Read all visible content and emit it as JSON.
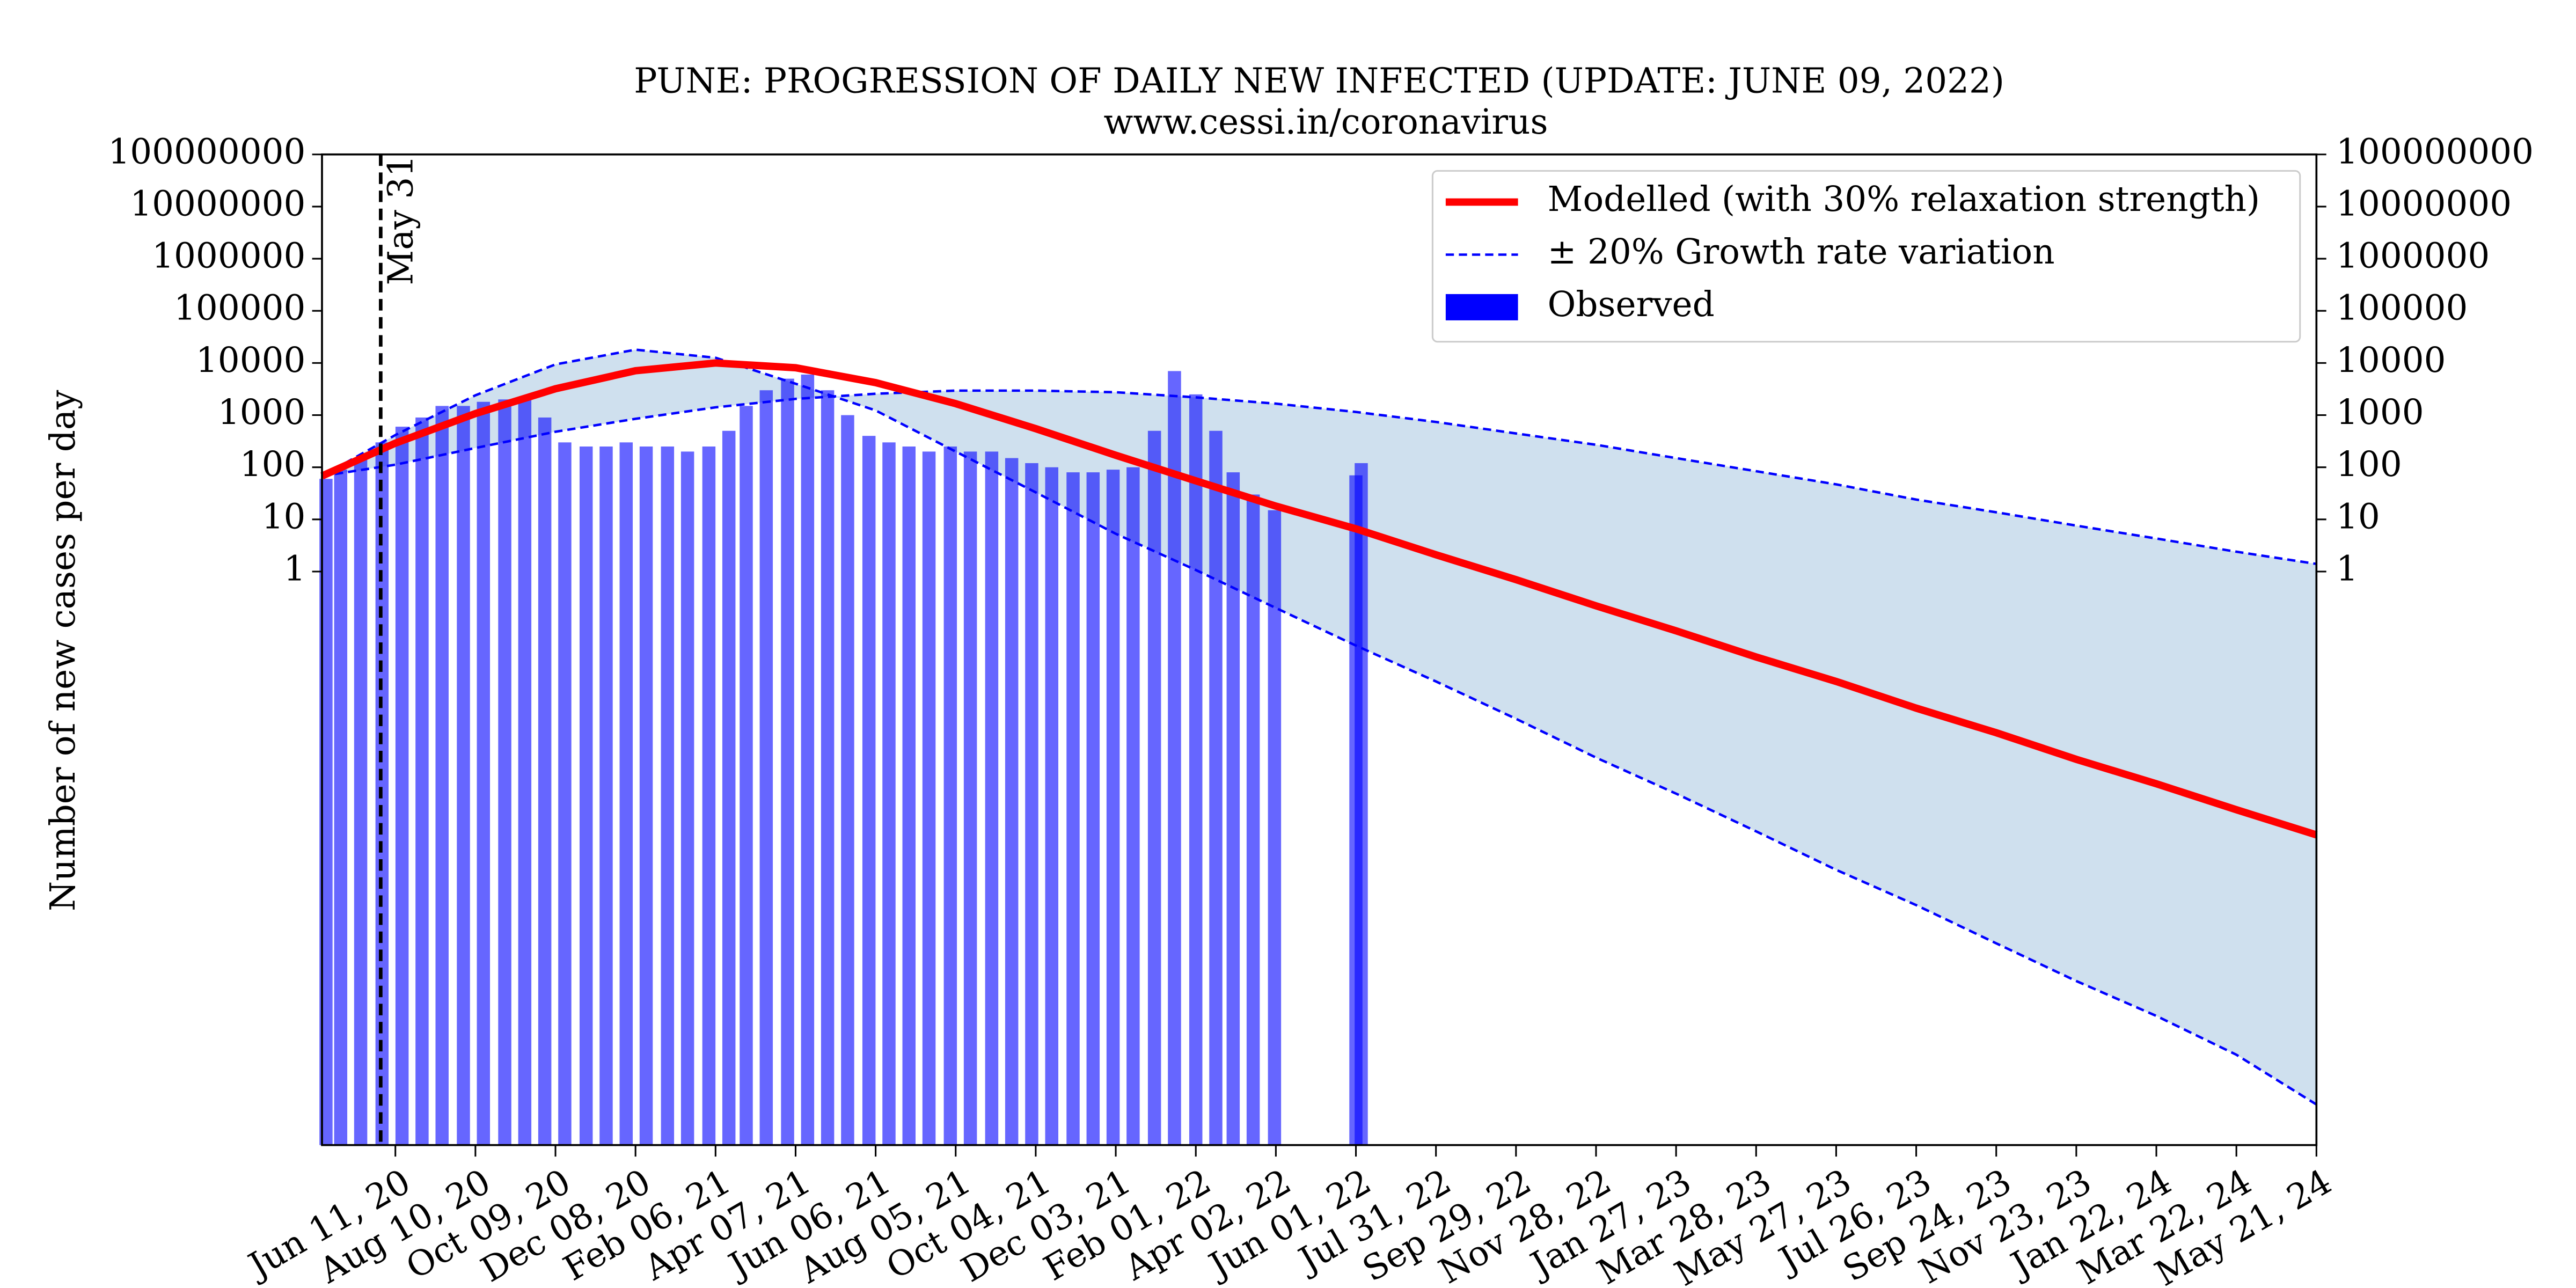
{
  "chart_data": {
    "type": "line",
    "title": "PUNE: PROGRESSION OF DAILY NEW INFECTED (UPDATE: JUNE 09, 2022)",
    "subtitle": "www.cessi.in/coronavirus",
    "ylabel": "Number of new cases per day",
    "yscale": "log",
    "ylim": [
      1e-11,
      100000000
    ],
    "yticks": [
      1,
      10,
      100,
      1000,
      10000,
      100000,
      1000000,
      10000000,
      100000000
    ],
    "y2lim": [
      1e-11,
      100000000
    ],
    "y2ticks": [
      1,
      10,
      100,
      1000,
      10000,
      100000,
      1000000,
      10000000,
      100000000
    ],
    "xlim": [
      "2020-04-17",
      "2024-05-21"
    ],
    "xticks": [
      {
        "value": "2020-06-11",
        "label": "Jun 11, 20"
      },
      {
        "value": "2020-08-10",
        "label": "Aug 10, 20"
      },
      {
        "value": "2020-10-09",
        "label": "Oct 09, 20"
      },
      {
        "value": "2020-12-08",
        "label": "Dec 08, 20"
      },
      {
        "value": "2021-02-06",
        "label": "Feb 06, 21"
      },
      {
        "value": "2021-04-07",
        "label": "Apr 07, 21"
      },
      {
        "value": "2021-06-06",
        "label": "Jun 06, 21"
      },
      {
        "value": "2021-08-05",
        "label": "Aug 05, 21"
      },
      {
        "value": "2021-10-04",
        "label": "Oct 04, 21"
      },
      {
        "value": "2021-12-03",
        "label": "Dec 03, 21"
      },
      {
        "value": "2022-02-01",
        "label": "Feb 01, 22"
      },
      {
        "value": "2022-04-02",
        "label": "Apr 02, 22"
      },
      {
        "value": "2022-06-01",
        "label": "Jun 01, 22"
      },
      {
        "value": "2022-07-31",
        "label": "Jul 31, 22"
      },
      {
        "value": "2022-09-29",
        "label": "Sep 29, 22"
      },
      {
        "value": "2022-11-28",
        "label": "Nov 28, 22"
      },
      {
        "value": "2023-01-27",
        "label": "Jan 27, 23"
      },
      {
        "value": "2023-03-28",
        "label": "Mar 28, 23"
      },
      {
        "value": "2023-05-27",
        "label": "May 27, 23"
      },
      {
        "value": "2023-07-26",
        "label": "Jul 26, 23"
      },
      {
        "value": "2023-09-24",
        "label": "Sep 24, 23"
      },
      {
        "value": "2023-11-23",
        "label": "Nov 23, 23"
      },
      {
        "value": "2024-01-22",
        "label": "Jan 22, 24"
      },
      {
        "value": "2024-03-22",
        "label": "Mar 22, 24"
      },
      {
        "value": "2024-05-21",
        "label": "May 21, 24"
      }
    ],
    "x": [
      "2020-04-17",
      "2020-06-11",
      "2020-08-10",
      "2020-10-09",
      "2020-12-08",
      "2021-02-06",
      "2021-04-07",
      "2021-06-06",
      "2021-08-05",
      "2021-10-04",
      "2021-12-03",
      "2022-02-01",
      "2022-04-02",
      "2022-06-01",
      "2022-07-31",
      "2022-09-29",
      "2022-11-28",
      "2023-01-27",
      "2023-03-28",
      "2023-05-27",
      "2023-07-26",
      "2023-09-24",
      "2023-11-23",
      "2024-01-22",
      "2024-03-22",
      "2024-05-21"
    ],
    "series": [
      {
        "name": "Modelled (with 30% relaxation strength)",
        "color": "#ff0000",
        "style": "solid",
        "values": [
          68,
          290,
          1070,
          3200,
          7100,
          10000,
          8100,
          4200,
          1660,
          550,
          170,
          55,
          18,
          6.6,
          2.1,
          0.7,
          0.22,
          0.073,
          0.023,
          0.0078,
          0.0024,
          0.00081,
          0.00025,
          8.5e-05,
          2.7e-05,
          8.9e-06
        ]
      },
      {
        "name": "± 20% Growth rate variation",
        "color": "#0000ff",
        "style": "dashed",
        "values": [
          68,
          112,
          234,
          480,
          850,
          1410,
          2050,
          2570,
          2950,
          2950,
          2750,
          2190,
          1660,
          1150,
          740,
          445,
          270,
          150,
          84,
          47,
          24,
          13.7,
          7.6,
          4.3,
          2.4,
          1.4
        ]
      },
      {
        "color": "#0000ff",
        "style": "dashed",
        "values": [
          68,
          415,
          2400,
          9400,
          18000,
          12600,
          4000,
          1230,
          200,
          33,
          5.3,
          1.07,
          0.2,
          0.038,
          0.0078,
          0.0015,
          0.00027,
          5.5e-05,
          1.04e-05,
          1.9e-06,
          4e-07,
          7.4e-08,
          1.4e-08,
          3e-09,
          5.4e-10,
          6e-11
        ]
      }
    ],
    "band_color": "#cfe0ee",
    "observed": {
      "name": "Observed",
      "color": "#0000ff",
      "x": [
        "2020-04-20",
        "2020-05-01",
        "2020-05-16",
        "2020-06-01",
        "2020-06-16",
        "2020-07-01",
        "2020-07-16",
        "2020-08-01",
        "2020-08-16",
        "2020-09-01",
        "2020-09-16",
        "2020-10-01",
        "2020-10-16",
        "2020-11-01",
        "2020-11-16",
        "2020-12-01",
        "2020-12-16",
        "2021-01-01",
        "2021-01-16",
        "2021-02-01",
        "2021-02-16",
        "2021-03-01",
        "2021-03-16",
        "2021-04-01",
        "2021-04-16",
        "2021-05-01",
        "2021-05-16",
        "2021-06-01",
        "2021-06-16",
        "2021-07-01",
        "2021-07-16",
        "2021-08-01",
        "2021-08-16",
        "2021-09-01",
        "2021-09-16",
        "2021-10-01",
        "2021-10-16",
        "2021-11-01",
        "2021-11-16",
        "2021-12-01",
        "2021-12-16",
        "2022-01-01",
        "2022-01-16",
        "2022-02-01",
        "2022-02-16",
        "2022-03-01",
        "2022-03-16",
        "2022-04-01",
        "2022-06-01",
        "2022-06-05"
      ],
      "values": [
        60,
        90,
        150,
        300,
        600,
        900,
        1500,
        1500,
        1800,
        2000,
        2000,
        900,
        300,
        250,
        250,
        300,
        250,
        250,
        200,
        250,
        500,
        1500,
        3000,
        5000,
        6000,
        3000,
        1000,
        400,
        300,
        250,
        200,
        250,
        200,
        200,
        150,
        120,
        100,
        80,
        80,
        90,
        100,
        500,
        7000,
        2500,
        500,
        80,
        30,
        15,
        70,
        120
      ]
    },
    "annotation": {
      "x": "2020-05-31",
      "text": "May 31"
    },
    "legend": "upper right"
  }
}
